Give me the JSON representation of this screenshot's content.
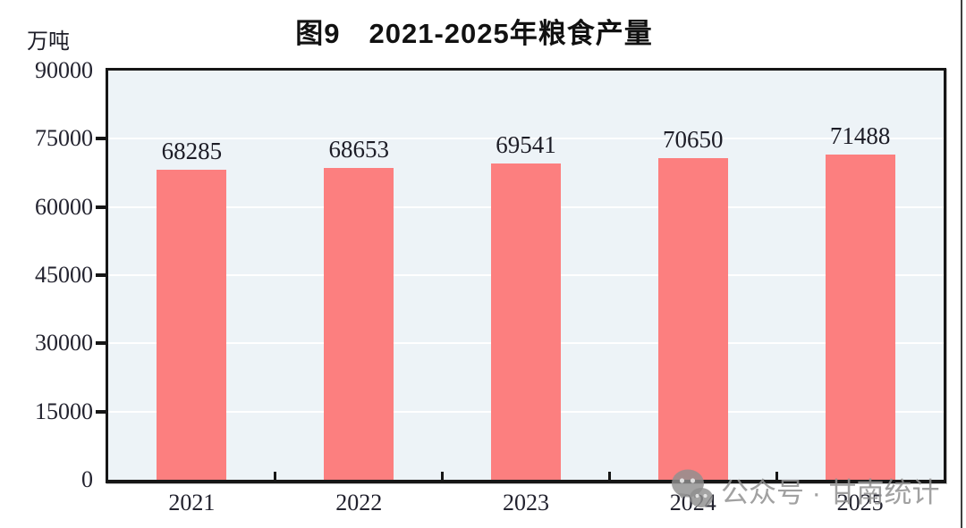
{
  "figure": {
    "title": "图9　2021-2025年粮食产量",
    "unit_label": "万吨",
    "watermark": {
      "icon": "wechat-icon",
      "text": "公众号 · 甘南统计"
    }
  },
  "chart_data": {
    "type": "bar",
    "title": "图9　2021-2025年粮食产量",
    "categories": [
      "2021",
      "2022",
      "2023",
      "2024",
      "2025"
    ],
    "values": [
      68285,
      68653,
      69541,
      70650,
      71488
    ],
    "xlabel": "",
    "ylabel": "万吨",
    "ylim": [
      0,
      90000
    ],
    "yticks": [
      0,
      15000,
      30000,
      45000,
      60000,
      75000,
      90000
    ],
    "grid": true,
    "legend": "none",
    "bar_color": "#FC7F7F",
    "plot_bg": "#EDF3F7",
    "gridline_color": "#FFFFFF",
    "axis_color": "#161616",
    "label_color": "#1C1C26"
  }
}
